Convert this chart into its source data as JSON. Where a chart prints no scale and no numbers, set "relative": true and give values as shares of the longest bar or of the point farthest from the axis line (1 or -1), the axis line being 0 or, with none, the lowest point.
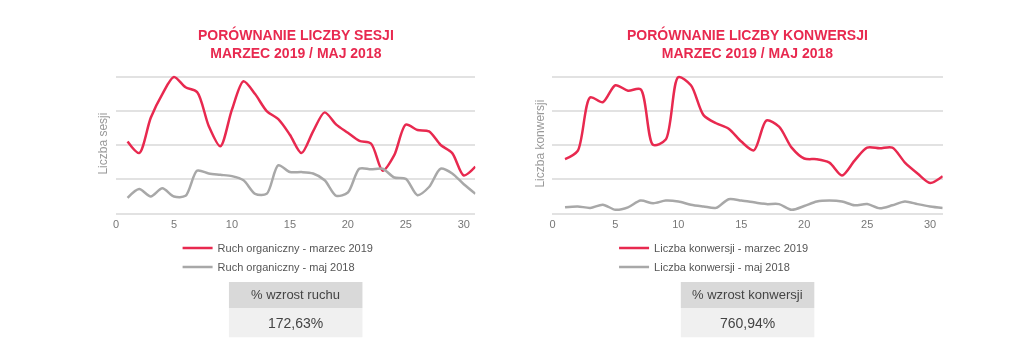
{
  "chart_data": [
    {
      "type": "line",
      "title": "PORÓWNANIE LICZBY SESJI\nMARZEC 2019 / MAJ 2018",
      "ylabel": "Liczba sesji",
      "relative": true,
      "grid": "y",
      "legend": "bottom",
      "x": [
        1,
        2,
        3,
        4,
        5,
        6,
        7,
        8,
        9,
        10,
        11,
        12,
        13,
        14,
        15,
        16,
        17,
        18,
        19,
        20,
        21,
        22,
        23,
        24,
        25,
        26,
        27,
        28,
        29,
        30,
        31
      ],
      "xlim": [
        0,
        31
      ],
      "xticks": [
        0,
        5,
        10,
        15,
        20,
        25,
        30
      ],
      "series": [
        {
          "name": "Ruch organiczny - marzec 2019",
          "color": "#e8294f",
          "values": [
            0.525,
            0.44,
            0.7,
            0.875,
            1.0,
            0.925,
            0.89,
            0.64,
            0.49,
            0.76,
            0.97,
            0.875,
            0.75,
            0.69,
            0.575,
            0.44,
            0.6,
            0.74,
            0.65,
            0.59,
            0.53,
            0.51,
            0.31,
            0.425,
            0.65,
            0.61,
            0.6,
            0.5,
            0.44,
            0.275,
            0.34
          ]
        },
        {
          "name": "Ruch organiczny - maj 2018",
          "color": "#a8a8a8",
          "values": [
            0.11,
            0.175,
            0.12,
            0.18,
            0.12,
            0.125,
            0.31,
            0.29,
            0.28,
            0.27,
            0.24,
            0.14,
            0.14,
            0.35,
            0.3,
            0.3,
            0.29,
            0.24,
            0.125,
            0.15,
            0.325,
            0.32,
            0.325,
            0.26,
            0.25,
            0.13,
            0.19,
            0.325,
            0.29,
            0.21,
            0.14
          ]
        }
      ],
      "annotations": [
        "% wzrost ruchu",
        "172,63%"
      ]
    },
    {
      "type": "line",
      "title": "PORÓWNANIE LICZBY KONWERSJI\nMARZEC 2019 / MAJ 2018",
      "ylabel": "Liczba konwersji",
      "relative": true,
      "grid": "y",
      "legend": "bottom",
      "x": [
        1,
        2,
        3,
        4,
        5,
        6,
        7,
        8,
        9,
        10,
        11,
        12,
        13,
        14,
        15,
        16,
        17,
        18,
        19,
        20,
        21,
        22,
        23,
        24,
        25,
        26,
        27,
        28,
        29,
        30,
        31
      ],
      "xlim": [
        0,
        31
      ],
      "xticks": [
        0,
        5,
        10,
        15,
        20,
        25,
        30
      ],
      "series": [
        {
          "name": "Liczba konwersji - marzec 2019",
          "color": "#e8294f",
          "values": [
            0.395,
            0.455,
            0.85,
            0.815,
            0.94,
            0.9,
            0.91,
            0.5,
            0.54,
            1.0,
            0.94,
            0.72,
            0.66,
            0.62,
            0.525,
            0.46,
            0.68,
            0.635,
            0.48,
            0.4,
            0.395,
            0.37,
            0.275,
            0.385,
            0.48,
            0.475,
            0.48,
            0.37,
            0.29,
            0.22,
            0.27
          ]
        },
        {
          "name": "Liczba konwersji - maj 2018",
          "color": "#a8a8a8",
          "values": [
            0.04,
            0.047,
            0.036,
            0.06,
            0.022,
            0.04,
            0.09,
            0.07,
            0.09,
            0.083,
            0.06,
            0.047,
            0.036,
            0.1,
            0.09,
            0.077,
            0.064,
            0.064,
            0.022,
            0.05,
            0.083,
            0.09,
            0.083,
            0.055,
            0.064,
            0.033,
            0.055,
            0.083,
            0.064,
            0.047,
            0.036
          ]
        }
      ],
      "annotations": [
        "% wzrost konwersji",
        "760,94%"
      ]
    }
  ]
}
